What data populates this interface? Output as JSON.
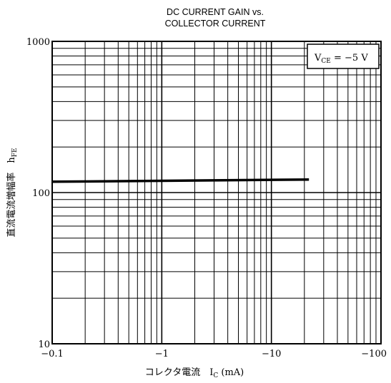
{
  "chart_data": {
    "type": "line",
    "title": [
      "DC CURRENT GAIN vs.",
      "COLLECTOR CURRENT"
    ],
    "xlabel": "コレクタ電流 I_C (mA)",
    "ylabel": "直流電流増幅率 h_FE",
    "x_scale": "log",
    "y_scale": "log",
    "xlim": [
      -0.1,
      -100
    ],
    "ylim": [
      10,
      1000
    ],
    "x_ticks": [
      "-0.1",
      "-1",
      "-10",
      "-100"
    ],
    "y_ticks": [
      "1000",
      "100",
      "10"
    ],
    "condition": "V_CE = -5 V",
    "grid": true,
    "series": [
      {
        "x": [
          -0.1,
          -22
        ],
        "y": [
          118,
          122
        ]
      }
    ]
  }
}
